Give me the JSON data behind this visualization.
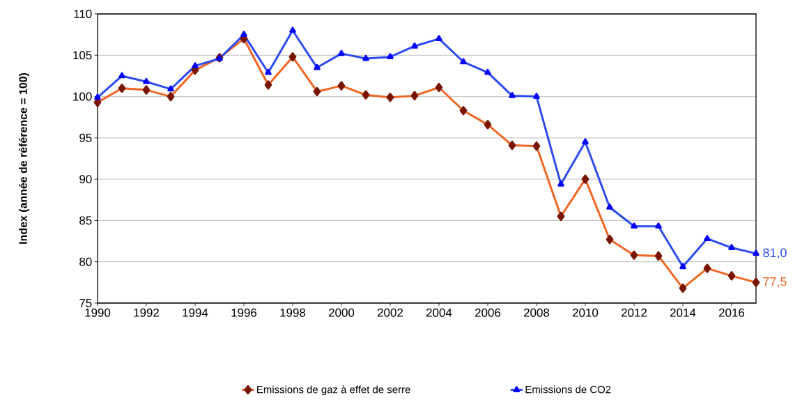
{
  "chart_data": {
    "type": "line",
    "ylabel": "Index (année de référence = 100)",
    "x": [
      1990,
      1991,
      1992,
      1993,
      1994,
      1995,
      1996,
      1997,
      1998,
      1999,
      2000,
      2001,
      2002,
      2003,
      2004,
      2005,
      2006,
      2007,
      2008,
      2009,
      2010,
      2011,
      2012,
      2013,
      2014,
      2015,
      2016,
      2017
    ],
    "series": [
      {
        "name": "Emissions de gaz à effet de serre",
        "color": "#f26522",
        "marker": "diamond",
        "values": [
          99.3,
          101.0,
          100.8,
          100.0,
          103.2,
          104.7,
          107.0,
          101.4,
          104.8,
          100.6,
          101.3,
          100.2,
          99.9,
          100.1,
          101.1,
          98.3,
          96.6,
          94.1,
          94.0,
          85.5,
          90.0,
          82.7,
          80.8,
          80.7,
          76.8,
          79.2,
          78.3,
          77.5
        ]
      },
      {
        "name": "Emissions de CO2",
        "color": "#2b4bf2",
        "marker": "triangle",
        "values": [
          99.9,
          102.5,
          101.8,
          100.9,
          103.7,
          104.6,
          107.5,
          102.9,
          108.0,
          103.5,
          105.2,
          104.6,
          104.8,
          106.1,
          107.0,
          104.2,
          102.9,
          100.1,
          100.0,
          89.4,
          94.5,
          86.6,
          84.3,
          84.3,
          79.4,
          82.8,
          81.7,
          81.0
        ]
      }
    ],
    "annotations": [
      {
        "text": "77,5",
        "x": 2017,
        "y": 77.5
      },
      {
        "text": "81,0",
        "x": 2017,
        "y": 81.0
      }
    ],
    "xlim": [
      1990,
      2017
    ],
    "xticks": [
      1990,
      1992,
      1994,
      1996,
      1998,
      2000,
      2002,
      2004,
      2006,
      2008,
      2010,
      2012,
      2014,
      2016
    ],
    "ylim": [
      75,
      110
    ],
    "yticks": [
      75,
      80,
      85,
      90,
      95,
      100,
      105,
      110
    ],
    "grid": "y",
    "legend": "bottom",
    "line_style": "solid"
  }
}
